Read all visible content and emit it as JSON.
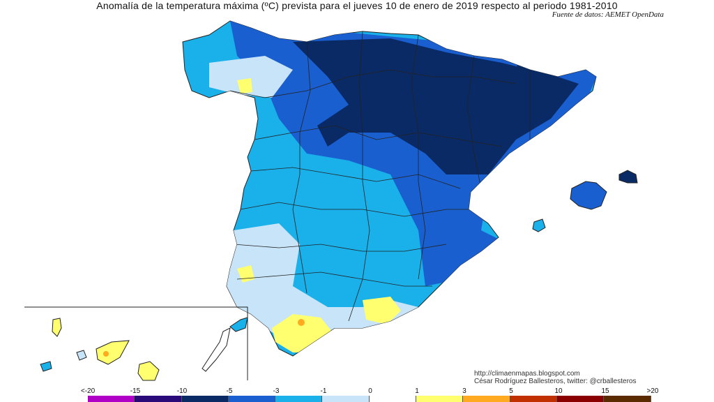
{
  "title": "Anomalía de la temperatura máxima (ºC) prevista para el jueves 10 de enero de 2019 respecto al periodo 1981-2010",
  "source": "Fuente de datos: AEMET OpenData",
  "credits": {
    "url": "http://climaenmapas.blogspot.com",
    "author": "César Rodríguez Ballesteros, twitter: @crballesteros"
  },
  "legend": {
    "labels": [
      "<-20",
      "-15",
      "-10",
      "-5",
      "-3",
      "-1",
      "0",
      "1",
      "3",
      "5",
      "10",
      "15",
      ">20"
    ],
    "colors": [
      "#e07ff0",
      "#b000c8",
      "#2a0a78",
      "#0a2a66",
      "#1a5fd0",
      "#1ab0ea",
      "#c8e4f8",
      "#ffffff",
      "#ffff70",
      "#ffaa20",
      "#c03000",
      "#8a0000",
      "#5a2a00"
    ]
  },
  "map_colors": {
    "very_cold": "#0a2a66",
    "cold": "#1a5fd0",
    "cool": "#1ab0ea",
    "slight_cool": "#c8e4f8",
    "neutral": "#ffffff",
    "warm": "#ffff70",
    "hot": "#ffaa20"
  }
}
